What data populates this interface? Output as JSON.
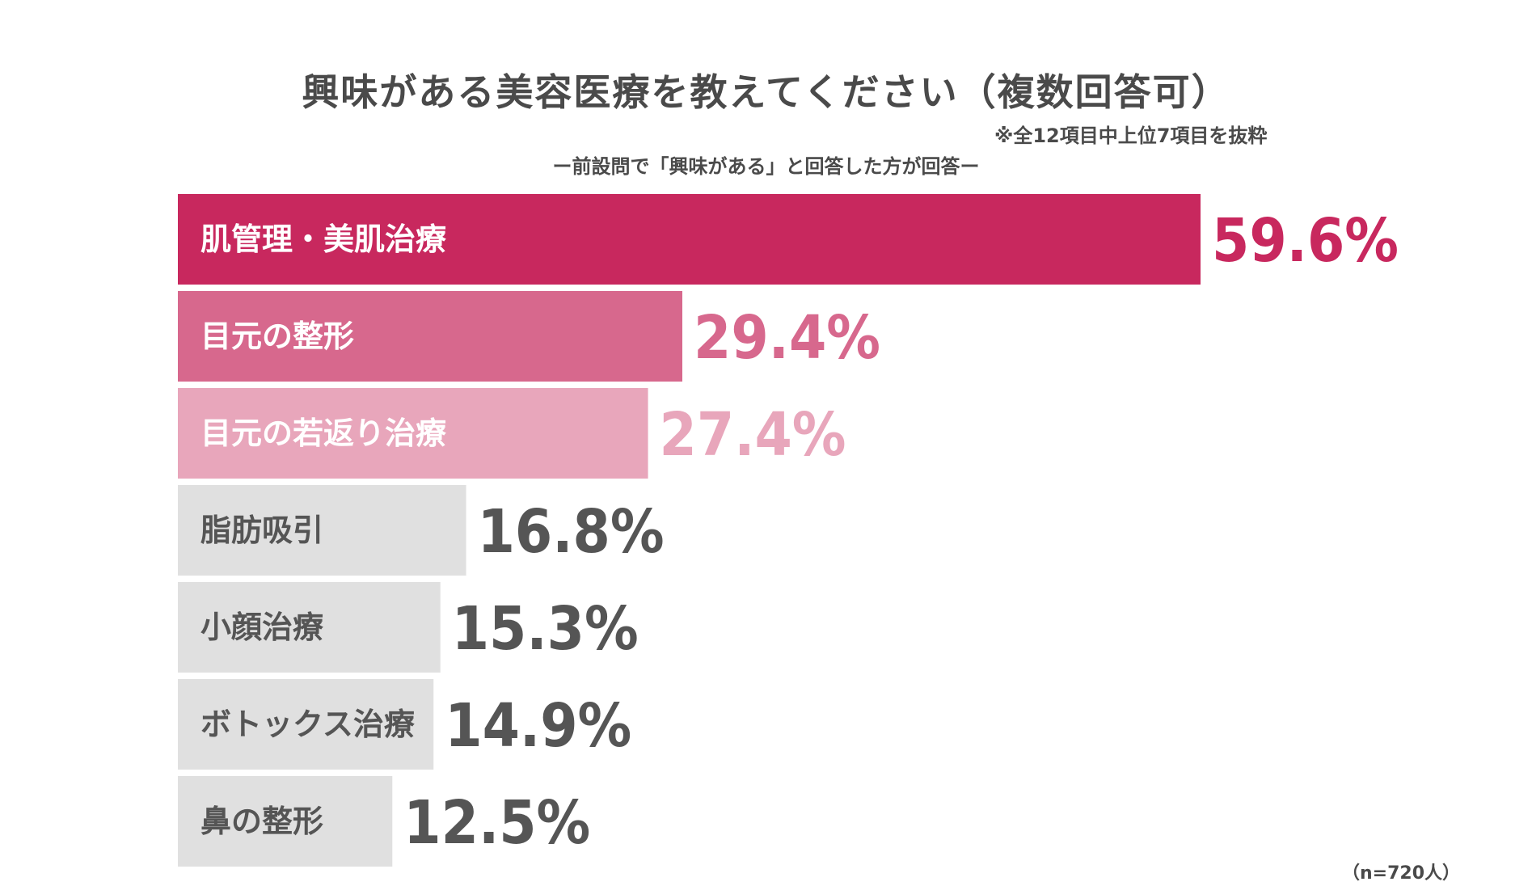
{
  "title": "興味がある美容医療を教えてください（複数回答可）",
  "note": "※全12項目中上位7項目を抜粋",
  "subtitle": "ー前設問で「興味がある」と回答した方が回答ー",
  "sample_size": "（n=720人）",
  "colors": {
    "rank1": "#c8285e",
    "rank2": "#d7688d",
    "rank3": "#e8a6bb",
    "other": "#e0e0e0",
    "label_light": "#ffffff",
    "label_dark": "#555555",
    "value_other": "#555555"
  },
  "chart_data": {
    "type": "bar",
    "orientation": "horizontal",
    "title": "興味がある美容医療を教えてください（複数回答可）",
    "xlabel": "",
    "ylabel": "",
    "xlim": [
      0,
      60
    ],
    "unit": "%",
    "categories": [
      "肌管理・美肌治療",
      "目元の整形",
      "目元の若返り治療",
      "脂肪吸引",
      "小顔治療",
      "ボトックス治療",
      "鼻の整形"
    ],
    "values": [
      59.6,
      29.4,
      27.4,
      16.8,
      15.3,
      14.9,
      12.5
    ],
    "value_labels": [
      "59.6%",
      "29.4%",
      "27.4%",
      "16.8%",
      "15.3%",
      "14.9%",
      "12.5%"
    ]
  }
}
